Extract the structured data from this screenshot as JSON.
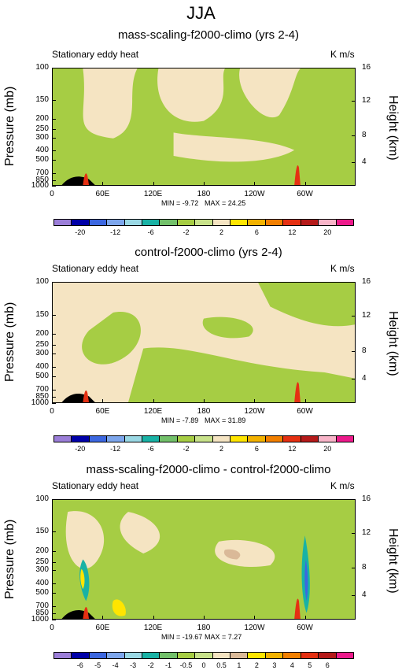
{
  "main_title": "JJA",
  "colors": {
    "light_green": "#a6cd44",
    "cream": "#f5e4c2",
    "pale_yellow_green": "#c8e28a",
    "black": "#000000",
    "red": "#e53012",
    "yellow": "#ffe500",
    "teal": "#19b2a5",
    "cyan": "#9ad8e4",
    "tan": "#dab998"
  },
  "chart_data": [
    {
      "type": "heatmap",
      "title": "mass-scaling-f2000-climo (yrs 2-4)",
      "subtitle": "Stationary eddy heat",
      "units": "K m/s",
      "ylabel": "Pressure (mb)",
      "ylabel_right": "Height (km)",
      "y_ticks": [
        "100",
        "150",
        "200",
        "250",
        "300",
        "400",
        "500",
        "700",
        "850",
        "1000"
      ],
      "y_ticks_right": [
        "16",
        "12",
        "8",
        "4"
      ],
      "x_ticks": [
        "0",
        "60E",
        "120E",
        "180",
        "120W",
        "60W"
      ],
      "min_label": "MIN = -9.72",
      "max_label": "MAX = 24.25",
      "colorbar_labels": [
        "-20",
        "-12",
        "-6",
        "-2",
        "2",
        "6",
        "12",
        "20"
      ],
      "colorbar_colors": [
        "#9b7ed8",
        "#0000a8",
        "#3c67e0",
        "#7da6ec",
        "#9ad8e4",
        "#19b2a5",
        "#72c06a",
        "#a6cd44",
        "#c8e28a",
        "#f5e4c2",
        "#ffe500",
        "#f3b200",
        "#f27f00",
        "#e53012",
        "#b51a1a",
        "#f8b4c8",
        "#ec1a8b"
      ]
    },
    {
      "type": "heatmap",
      "title": "control-f2000-climo (yrs 2-4)",
      "subtitle": "Stationary eddy heat",
      "units": "K m/s",
      "ylabel": "Pressure (mb)",
      "ylabel_right": "Height (km)",
      "y_ticks": [
        "100",
        "150",
        "200",
        "250",
        "300",
        "400",
        "500",
        "700",
        "850",
        "1000"
      ],
      "y_ticks_right": [
        "16",
        "12",
        "8",
        "4"
      ],
      "x_ticks": [
        "0",
        "60E",
        "120E",
        "180",
        "120W",
        "60W"
      ],
      "min_label": "MIN = -7.89",
      "max_label": "MAX = 31.89",
      "colorbar_labels": [
        "-20",
        "-12",
        "-6",
        "-2",
        "2",
        "6",
        "12",
        "20"
      ],
      "colorbar_colors": [
        "#9b7ed8",
        "#0000a8",
        "#3c67e0",
        "#7da6ec",
        "#9ad8e4",
        "#19b2a5",
        "#72c06a",
        "#a6cd44",
        "#c8e28a",
        "#f5e4c2",
        "#ffe500",
        "#f3b200",
        "#f27f00",
        "#e53012",
        "#b51a1a",
        "#f8b4c8",
        "#ec1a8b"
      ]
    },
    {
      "type": "heatmap",
      "title": "mass-scaling-f2000-climo - control-f2000-climo",
      "subtitle": "Stationary eddy heat",
      "units": "K m/s",
      "ylabel": "Pressure (mb)",
      "ylabel_right": "Height (km)",
      "y_ticks": [
        "100",
        "150",
        "200",
        "250",
        "300",
        "400",
        "500",
        "700",
        "850",
        "1000"
      ],
      "y_ticks_right": [
        "16",
        "12",
        "8",
        "4"
      ],
      "x_ticks": [
        "0",
        "60E",
        "120E",
        "180",
        "120W",
        "60W"
      ],
      "min_label": "MIN = -19.67",
      "max_label": "MAX = 7.27",
      "colorbar_labels": [
        "-6",
        "-5",
        "-4",
        "-3",
        "-2",
        "-1",
        "-0.5",
        "0",
        "0.5",
        "1",
        "2",
        "3",
        "4",
        "5",
        "6"
      ],
      "colorbar_colors": [
        "#9b7ed8",
        "#0000a8",
        "#3c67e0",
        "#7da6ec",
        "#9ad8e4",
        "#19b2a5",
        "#72c06a",
        "#a6cd44",
        "#c8e28a",
        "#f5e4c2",
        "#dab998",
        "#ffe500",
        "#f3b200",
        "#f27f00",
        "#e53012",
        "#b51a1a",
        "#ec1a8b"
      ]
    }
  ]
}
